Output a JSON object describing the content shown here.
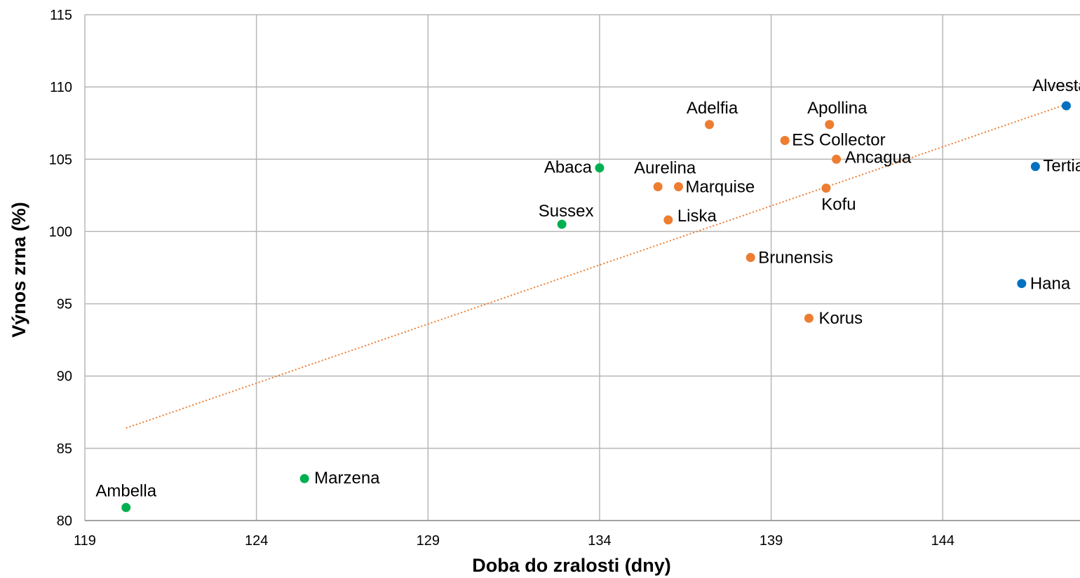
{
  "chart_data": {
    "type": "scatter",
    "title": "",
    "xlabel": "Doba do zralosti (dny)",
    "ylabel": "Výnos zrna (%)",
    "xlim": [
      119,
      148
    ],
    "ylim": [
      80,
      115
    ],
    "xticks": [
      119,
      124,
      129,
      134,
      139,
      144
    ],
    "yticks": [
      80,
      85,
      90,
      95,
      100,
      105,
      110,
      115
    ],
    "grid": true,
    "legend": "none",
    "colors": {
      "green": "#00b050",
      "orange": "#ed7d31",
      "blue": "#0070c0",
      "trend": "#ed7d31"
    },
    "points": [
      {
        "label": "Ambella",
        "x": 120.2,
        "y": 80.9,
        "color": "green"
      },
      {
        "label": "Marzena",
        "x": 125.4,
        "y": 82.9,
        "color": "green"
      },
      {
        "label": "Sussex",
        "x": 132.9,
        "y": 100.5,
        "color": "green"
      },
      {
        "label": "Abaca",
        "x": 134.0,
        "y": 104.4,
        "color": "green"
      },
      {
        "label": "Aurelina",
        "x": 135.7,
        "y": 103.1,
        "color": "orange"
      },
      {
        "label": "Marquise",
        "x": 136.3,
        "y": 103.1,
        "color": "orange"
      },
      {
        "label": "Liska",
        "x": 136.0,
        "y": 100.8,
        "color": "orange"
      },
      {
        "label": "Adelfia",
        "x": 137.2,
        "y": 107.4,
        "color": "orange"
      },
      {
        "label": "Brunensis",
        "x": 138.4,
        "y": 98.2,
        "color": "orange"
      },
      {
        "label": "ES Collector",
        "x": 139.4,
        "y": 106.3,
        "color": "orange"
      },
      {
        "label": "Korus",
        "x": 140.1,
        "y": 94.0,
        "color": "orange"
      },
      {
        "label": "Apollina",
        "x": 140.7,
        "y": 107.4,
        "color": "orange"
      },
      {
        "label": "Kofu",
        "x": 140.6,
        "y": 103.0,
        "color": "orange"
      },
      {
        "label": "Ancagua",
        "x": 140.9,
        "y": 105.0,
        "color": "orange"
      },
      {
        "label": "Hana",
        "x": 146.3,
        "y": 96.4,
        "color": "blue"
      },
      {
        "label": "Tertia",
        "x": 146.7,
        "y": 104.5,
        "color": "blue"
      },
      {
        "label": "Alvesta",
        "x": 147.6,
        "y": 108.7,
        "color": "blue"
      }
    ],
    "trendline": {
      "style": "dotted",
      "color": "orange",
      "from": {
        "x": 120.2,
        "y": 86.4
      },
      "to": {
        "x": 147.6,
        "y": 108.8
      }
    }
  }
}
